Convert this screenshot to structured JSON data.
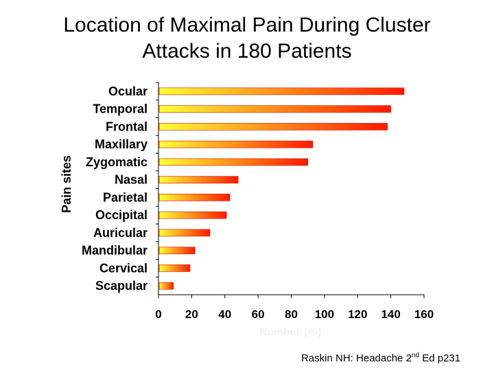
{
  "title_line1": "Location of Maximal Pain During Cluster",
  "title_line2": "Attacks in 180 Patients",
  "source": {
    "prefix": "Raskin NH: Headache 2",
    "superscript": "nd",
    "suffix": " Ed p231"
  },
  "chart_data": {
    "type": "bar",
    "orientation": "horizontal",
    "categories": [
      "Ocular",
      "Temporal",
      "Frontal",
      "Maxillary",
      "Zygomatic",
      "Nasal",
      "Parietal",
      "Occipital",
      "Auricular",
      "Mandibular",
      "Cervical",
      "Scapular"
    ],
    "values": [
      148,
      140,
      138,
      93,
      90,
      48,
      43,
      41,
      31,
      22,
      19,
      9
    ],
    "ylabel": "Pain sites",
    "xlabel": "Number (%)",
    "xlim": [
      0,
      160
    ],
    "xticks": [
      0,
      20,
      40,
      60,
      80,
      100,
      120,
      140,
      160
    ],
    "grid": false,
    "legend": "none",
    "bar_gradient": [
      "#ffff33",
      "#ff1a00"
    ]
  }
}
